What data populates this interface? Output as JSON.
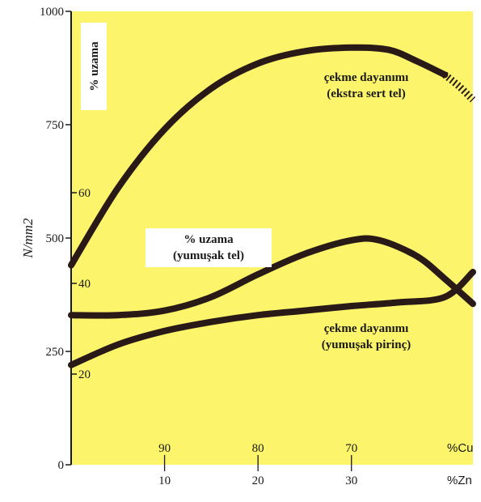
{
  "colors": {
    "plot_background": "#fcf46a",
    "curve": "#2a1a17",
    "axis": "#1a1a1a"
  },
  "chart_data": {
    "type": "line",
    "title": "",
    "ylabel": "N/mm2",
    "ylim": [
      0,
      1000
    ],
    "yticks": [
      0,
      250,
      500,
      750,
      1000
    ],
    "ylim_secondary": [
      0,
      100
    ],
    "elongation_ticks": [
      20,
      40,
      60
    ],
    "elongation_label": "% uzama",
    "x_axis": {
      "zn_label": "%Zn",
      "cu_label": "%Cu",
      "zn_ticks": [
        10,
        20,
        30
      ],
      "cu_ticks": [
        90,
        80,
        70
      ],
      "xlim": [
        0,
        43
      ]
    },
    "series": [
      {
        "name": "çekme dayanımı (ekstra sert tel)",
        "label_lines": [
          "çekme dayanımı",
          "(ekstra sert tel)"
        ],
        "axis": "N/mm2",
        "x": [
          0,
          5,
          10,
          15,
          20,
          25,
          30,
          34,
          37,
          40
        ],
        "values": [
          440,
          610,
          740,
          830,
          885,
          912,
          920,
          915,
          890,
          860
        ]
      },
      {
        "name": "çekme dayanımı (ekstra sert tel) - dashed end",
        "axis": "N/mm2",
        "style": "dashed",
        "x": [
          40,
          41.5,
          43
        ],
        "values": [
          860,
          835,
          805
        ]
      },
      {
        "name": "% uzama (yumuşak tel)",
        "label_lines": [
          "% uzama",
          "(yumuşak tel)"
        ],
        "axis": "% uzama",
        "x": [
          0,
          5,
          10,
          15,
          20,
          25,
          30,
          33,
          37,
          40,
          43
        ],
        "values": [
          33,
          33,
          34,
          37,
          42,
          46.5,
          49.5,
          49.5,
          46,
          41,
          35.5
        ]
      },
      {
        "name": "çekme dayanımı (yumuşak pirinç)",
        "label_lines": [
          "çekme dayanımı",
          "(yumuşak pirinç)"
        ],
        "axis": "N/mm2",
        "x": [
          0,
          5,
          10,
          15,
          20,
          25,
          30,
          35,
          40,
          43
        ],
        "values": [
          220,
          265,
          295,
          315,
          330,
          340,
          350,
          358,
          370,
          425
        ]
      }
    ]
  }
}
